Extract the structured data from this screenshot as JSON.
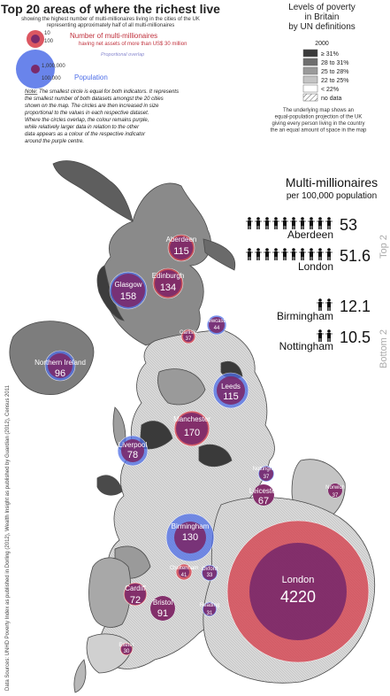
{
  "header": {
    "title": "Top 20 areas of where the richest live",
    "subtitle_line1": "showing the highest number of multi-millionaires living in the cities of the UK",
    "subtitle_line2": "representing approximately half of all multi-millionaires"
  },
  "legend_left": {
    "mm_small": "10",
    "mm_large": "100",
    "mm_title": "Number of multi-millionaires",
    "mm_sub": "having net assets of more than US$ 30 million",
    "overlap": "Proportional overlap",
    "pop_large": "1,000,000",
    "pop_small": "100,000",
    "pop_title": "Population",
    "colors": {
      "millionaires": "#d63a47",
      "population": "#4f6fe8",
      "overlap": "#7a2a6b"
    }
  },
  "note": {
    "label": "Note:",
    "lines": [
      " The smallest circle is equal for both indicators. It represents",
      "the smallest number of both datasets amongst the 20 cities",
      "shown on the map. The circles are then increased in size",
      "proportional to the values in each respective dataset.",
      "Where the circles overlap, the colour remains purple,",
      "while relatively larger data in relation to the other",
      "data appears as a colour of the respective indicator",
      "around the purple centre."
    ]
  },
  "poverty_legend": {
    "title_lines": [
      "Levels of poverty",
      "in Britain",
      "by UN definitions"
    ],
    "year": "2000",
    "items": [
      {
        "label": "≥ 31%",
        "color": "#3a3a3a"
      },
      {
        "label": "28 to 31%",
        "color": "#6e6e6e"
      },
      {
        "label": "25 to 28%",
        "color": "#9a9a9a"
      },
      {
        "label": "22 to 25%",
        "color": "#c4c4c4"
      },
      {
        "label": "< 22%",
        "color": "#ffffff"
      },
      {
        "label": "no data",
        "color": "hatch"
      }
    ],
    "description_lines": [
      "The underlying map shows an",
      "equal-population projection of the UK",
      "giving every person living in the country",
      "the an equal amount of space in the map"
    ]
  },
  "ranking": {
    "title": "Multi-millionaires",
    "subtitle": "per 100,000 population",
    "top_label": "Top 2",
    "bottom_label": "Bottom 2",
    "top": [
      {
        "name": "Aberdeen",
        "value": "53",
        "figures": 10
      },
      {
        "name": "London",
        "value": "51.6",
        "figures": 10
      }
    ],
    "bottom": [
      {
        "name": "Birmingham",
        "value": "12.1",
        "figures": 2
      },
      {
        "name": "Nottingham",
        "value": "10.5",
        "figures": 2
      }
    ]
  },
  "cities": [
    {
      "name": "Aberdeen",
      "value": "115"
    },
    {
      "name": "Glasgow",
      "value": "158"
    },
    {
      "name": "Edinburgh",
      "value": "134"
    },
    {
      "name": "Newcastle",
      "value": "44"
    },
    {
      "name": "Carlisle",
      "value": "37"
    },
    {
      "name": "Northern Ireland",
      "value": "96"
    },
    {
      "name": "Leeds",
      "value": "115"
    },
    {
      "name": "Manchester",
      "value": "170"
    },
    {
      "name": "Liverpool",
      "value": "78"
    },
    {
      "name": "Nottingham",
      "value": "37"
    },
    {
      "name": "Leicester",
      "value": "67"
    },
    {
      "name": "Norwich",
      "value": "37"
    },
    {
      "name": "Birmingham",
      "value": "130"
    },
    {
      "name": "Cheltenham",
      "value": "41"
    },
    {
      "name": "Oxford",
      "value": "33"
    },
    {
      "name": "London",
      "value": "4220"
    },
    {
      "name": "Cardiff",
      "value": "72"
    },
    {
      "name": "Bristol",
      "value": "91"
    },
    {
      "name": "Reading",
      "value": "31"
    },
    {
      "name": "Exeter",
      "value": "30"
    }
  ],
  "source": "Data Sources: UNHD Poverty Index as published in Dorling (2012), Wealth Insight as published by Guardian (2012), Census 2011"
}
